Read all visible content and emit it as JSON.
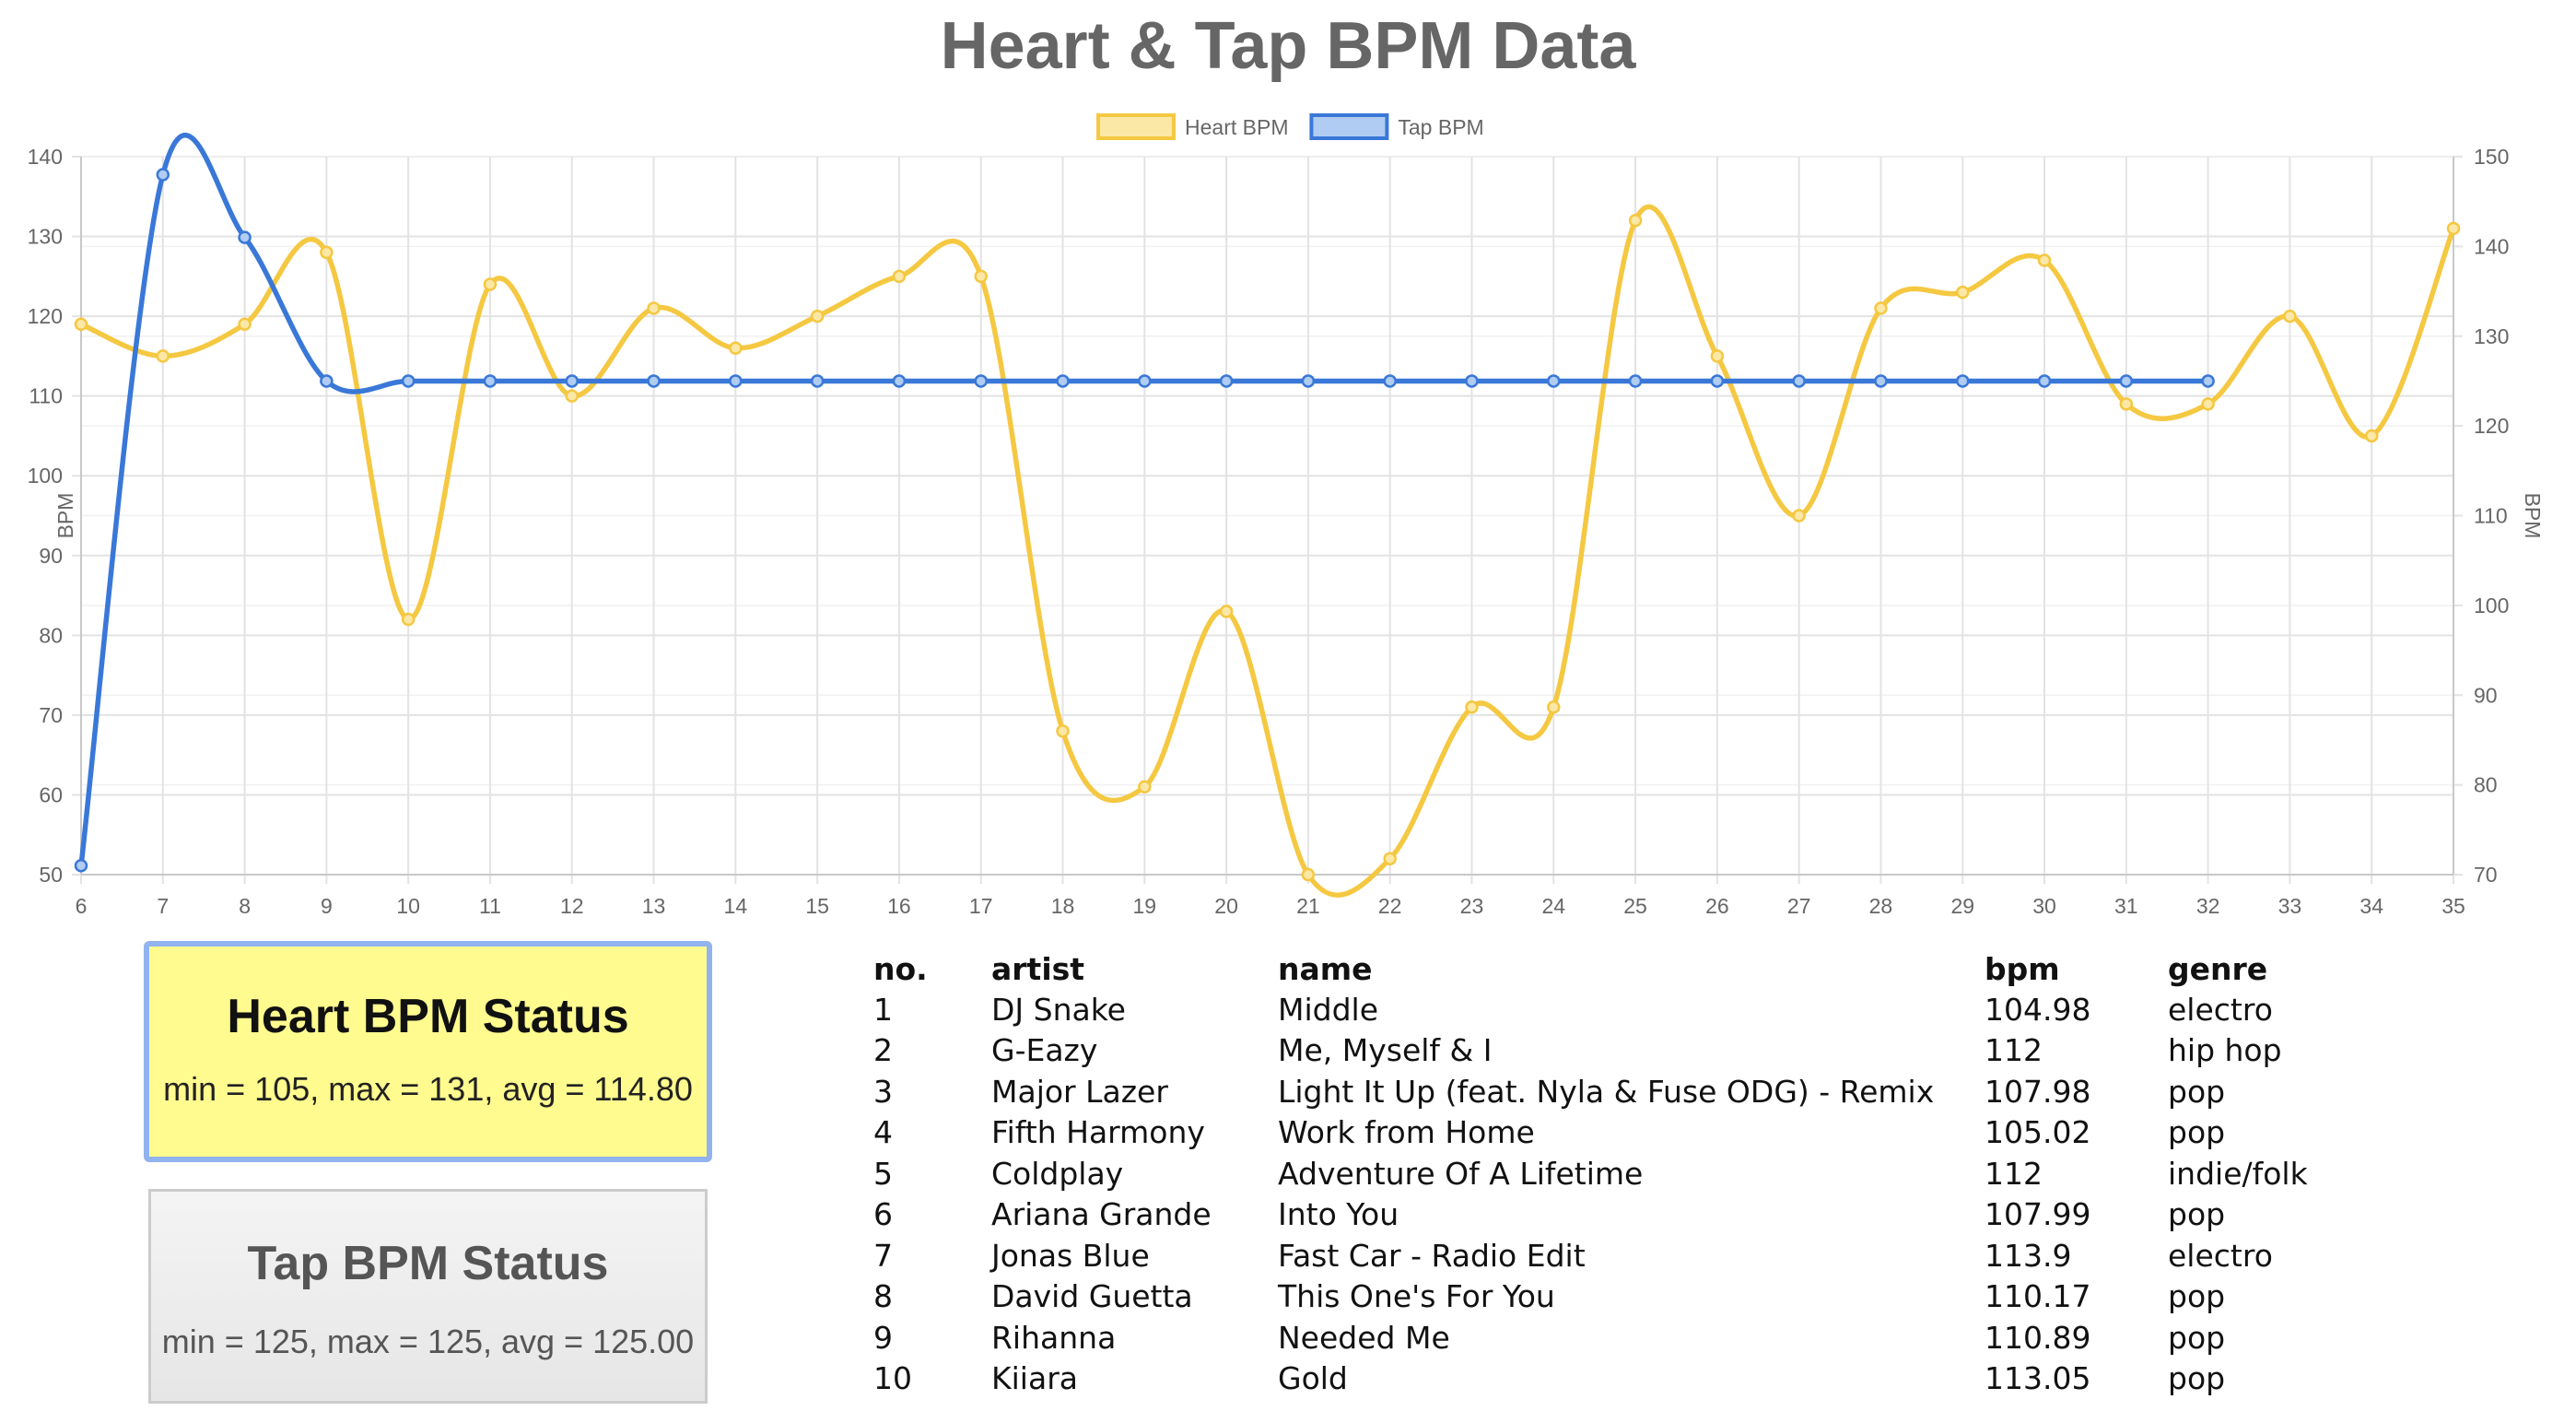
{
  "page": {
    "title": "Heart & Tap BPM Data"
  },
  "chart_data": {
    "type": "line",
    "title": "Heart & Tap BPM Data",
    "x": [
      6,
      7,
      8,
      9,
      10,
      11,
      12,
      13,
      14,
      15,
      16,
      17,
      18,
      19,
      20,
      21,
      22,
      23,
      24,
      25,
      26,
      27,
      28,
      29,
      30,
      31,
      32,
      33,
      34,
      35
    ],
    "series": [
      {
        "name": "Heart BPM",
        "axis": "left",
        "color": "#f5c842",
        "fill": "#fbe8a6",
        "values": [
          119,
          115,
          119,
          128,
          82,
          124,
          110,
          121,
          116,
          120,
          125,
          125,
          68,
          61,
          83,
          50,
          52,
          71,
          71,
          132,
          115,
          95,
          121,
          123,
          127,
          109,
          109,
          120,
          105,
          131
        ]
      },
      {
        "name": "Tap BPM",
        "axis": "right",
        "color": "#3a78d8",
        "fill": "#b0ccf2",
        "values": [
          71,
          148,
          141,
          125,
          125,
          125,
          125,
          125,
          125,
          125,
          125,
          125,
          125,
          125,
          125,
          125,
          125,
          125,
          125,
          125,
          125,
          125,
          125,
          125,
          125,
          125,
          125,
          null,
          null,
          null
        ]
      }
    ],
    "ylabel_left": "BPM",
    "ylim_left": [
      50,
      140
    ],
    "yticks_left": [
      50,
      60,
      70,
      80,
      90,
      100,
      110,
      120,
      130,
      140
    ],
    "ylabel_right": "BPM",
    "ylim_right": [
      70,
      150
    ],
    "yticks_right": [
      70,
      80,
      90,
      100,
      110,
      120,
      130,
      140,
      150
    ],
    "grid": true,
    "legend": "top-center"
  },
  "heart_status": {
    "title": "Heart BPM Status",
    "stats": "min = 105, max = 131, avg = 114.80"
  },
  "tap_status": {
    "title": "Tap BPM Status",
    "stats": "min = 125, max = 125, avg = 125.00"
  },
  "songs": {
    "headers": {
      "no": "no.",
      "artist": "artist",
      "name": "name",
      "bpm": "bpm",
      "genre": "genre"
    },
    "rows": [
      {
        "no": "1",
        "artist": "DJ Snake",
        "name": "Middle",
        "bpm": "104.98",
        "genre": "electro"
      },
      {
        "no": "2",
        "artist": "G-Eazy",
        "name": "Me, Myself & I",
        "bpm": "112",
        "genre": "hip hop"
      },
      {
        "no": "3",
        "artist": "Major Lazer",
        "name": "Light It Up (feat. Nyla & Fuse ODG) - Remix",
        "bpm": "107.98",
        "genre": "pop"
      },
      {
        "no": "4",
        "artist": "Fifth Harmony",
        "name": "Work from Home",
        "bpm": "105.02",
        "genre": "pop"
      },
      {
        "no": "5",
        "artist": "Coldplay",
        "name": "Adventure Of A Lifetime",
        "bpm": "112",
        "genre": "indie/folk"
      },
      {
        "no": "6",
        "artist": "Ariana Grande",
        "name": "Into You",
        "bpm": "107.99",
        "genre": "pop"
      },
      {
        "no": "7",
        "artist": "Jonas Blue",
        "name": "Fast Car - Radio Edit",
        "bpm": "113.9",
        "genre": "electro"
      },
      {
        "no": "8",
        "artist": "David Guetta",
        "name": "This One's For You",
        "bpm": "110.17",
        "genre": "pop"
      },
      {
        "no": "9",
        "artist": "Rihanna",
        "name": "Needed Me",
        "bpm": "110.89",
        "genre": "pop"
      },
      {
        "no": "10",
        "artist": "Kiiara",
        "name": "Gold",
        "bpm": "113.05",
        "genre": "pop"
      }
    ]
  }
}
